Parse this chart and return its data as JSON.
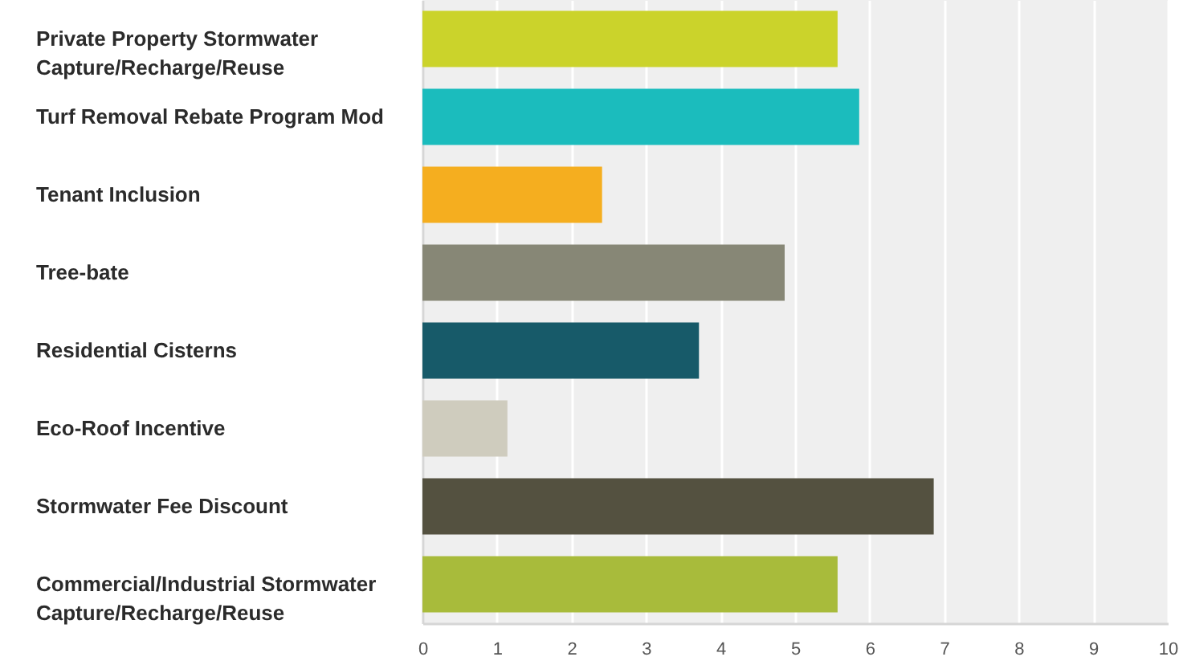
{
  "chart_data": {
    "type": "bar",
    "orientation": "horizontal",
    "categories": [
      "Private Property Stormwater Capture/Recharge/Reuse",
      "Turf Removal Rebate Program Mod",
      "Tenant Inclusion",
      "Tree-bate",
      "Residential Cisterns",
      "Eco-Roof Incentive",
      "Stormwater Fee Discount",
      "Commercial/Industrial Stormwater Capture/Recharge/Reuse"
    ],
    "values": [
      5.57,
      5.86,
      2.41,
      4.86,
      3.71,
      1.14,
      6.86,
      5.57
    ],
    "colors": [
      "#cbd32b",
      "#1bbcbd",
      "#f5ae1f",
      "#878776",
      "#175a69",
      "#cfccbe",
      "#545140",
      "#a8bb3b"
    ],
    "xlim": [
      0,
      10
    ],
    "xticks": [
      0,
      1,
      2,
      3,
      4,
      5,
      6,
      7,
      8,
      9,
      10
    ],
    "grid": "x"
  }
}
